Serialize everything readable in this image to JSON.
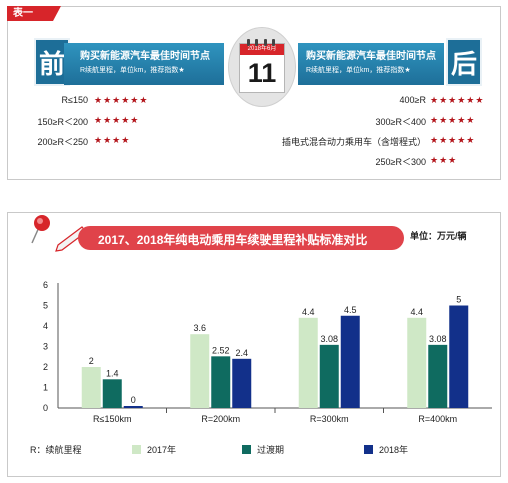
{
  "table": {
    "tag": "表一",
    "left": {
      "badge": "前",
      "title": "购买新能源汽车最佳时间节点",
      "subtitle": "R续航里程，单位km，推荐指数★",
      "rows": [
        {
          "label": "R≤150",
          "stars": "★★★★★★"
        },
        {
          "label": "150≥R＜200",
          "stars": "★★★★★"
        },
        {
          "label": "200≥R＜250",
          "stars": "★★★★"
        }
      ]
    },
    "right": {
      "badge": "后",
      "title": "购买新能源汽车最佳时间节点",
      "subtitle": "R续航里程，单位km，推荐指数★",
      "rows": [
        {
          "label": "400≥R",
          "stars": "★★★★★★"
        },
        {
          "label": "300≥R＜400",
          "stars": "★★★★★"
        },
        {
          "label": "插电式混合动力乘用车（含增程式）",
          "stars": "★★★★★"
        },
        {
          "label": "250≥R＜300",
          "stars": "★★★"
        }
      ]
    },
    "calendar": {
      "header": "2018年6月",
      "day": "11"
    }
  },
  "chart_data": {
    "type": "bar",
    "title": "2017、2018年纯电动乘用车续驶里程补贴标准对比",
    "unit": "单位：万元/辆",
    "categories": [
      "R≤150km",
      "R=200km",
      "R=300km",
      "R=400km"
    ],
    "series": [
      {
        "name": "2017年",
        "values": [
          2,
          3.6,
          4.4,
          4.4
        ],
        "color": "#cfe8c6"
      },
      {
        "name": "过渡期",
        "values": [
          1.4,
          2.52,
          3.08,
          3.08
        ],
        "color": "#0f6b60"
      },
      {
        "name": "2018年",
        "values": [
          0,
          2.4,
          4.5,
          5
        ],
        "color": "#12308a"
      }
    ],
    "data_labels": [
      [
        "2",
        "1.4",
        "0"
      ],
      [
        "3.6",
        "2.52",
        "2.4"
      ],
      [
        "4.4",
        "3.08",
        "4.5"
      ],
      [
        "4.4",
        "3.08",
        "5"
      ]
    ],
    "ylim": [
      0,
      6
    ],
    "yticks": [
      "0",
      "1",
      "2",
      "3",
      "4",
      "5",
      "6"
    ],
    "grid": false,
    "legend": {
      "prefix": "R：续航里程",
      "position": "bottom"
    }
  }
}
